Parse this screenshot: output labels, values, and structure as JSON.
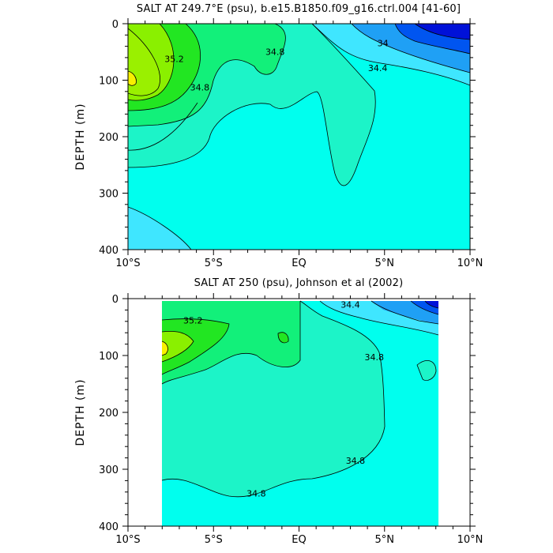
{
  "colors": {
    "level_34_0": "#0011d8",
    "level_34_2": "#0055f0",
    "level_34_4": "#1fa0f5",
    "level_34_6": "#3fe6ff",
    "level_34_8": "#00ffee",
    "level_35_0": "#1cf4c8",
    "level_35_2": "#12f07a",
    "level_35_4": "#22e622",
    "level_35_6": "#8af000",
    "level_35_8": "#f2f000",
    "contour_line": "#000000",
    "axis": "#000000"
  },
  "chart_data": [
    {
      "type": "contour",
      "title": "SALT AT 249.7°E (psu), b.e15.B1850.f09_g16.ctrl.004 [41-60]",
      "xlabel": "",
      "ylabel": "DEPTH (m)",
      "x_tick_labels": [
        "10°S",
        "5°S",
        "EQ",
        "5°N",
        "10°N"
      ],
      "x_ticks": [
        -10,
        -5,
        0,
        5,
        10
      ],
      "y_ticks": [
        0,
        100,
        200,
        300,
        400
      ],
      "xlim": [
        -10,
        10
      ],
      "ylim": [
        400,
        0
      ],
      "contour_labels": [
        {
          "text": "35.2",
          "x": -7.3,
          "y": 68
        },
        {
          "text": "34.8",
          "x": -5.8,
          "y": 118
        },
        {
          "text": "34.8",
          "x": -1.4,
          "y": 55
        },
        {
          "text": "34",
          "x": 4.9,
          "y": 40
        },
        {
          "text": "34.4",
          "x": 4.6,
          "y": 84
        }
      ]
    },
    {
      "type": "contour",
      "title": "SALT AT 250 (psu), Johnson et al (2002)",
      "xlabel": "",
      "ylabel": "DEPTH (m)",
      "x_tick_labels": [
        "10°S",
        "5°S",
        "EQ",
        "5°N",
        "10°N"
      ],
      "x_ticks": [
        -10,
        -5,
        0,
        5,
        10
      ],
      "y_ticks": [
        0,
        100,
        200,
        300,
        400
      ],
      "xlim": [
        -10,
        10
      ],
      "ylim": [
        400,
        0
      ],
      "contour_labels": [
        {
          "text": "35.2",
          "x": -6.2,
          "y": 44
        },
        {
          "text": "34.4",
          "x": 3.0,
          "y": 16
        },
        {
          "text": "34.8",
          "x": 4.4,
          "y": 108
        },
        {
          "text": "34.8",
          "x": 3.3,
          "y": 290
        },
        {
          "text": "34.8",
          "x": -2.5,
          "y": 348
        }
      ]
    }
  ]
}
